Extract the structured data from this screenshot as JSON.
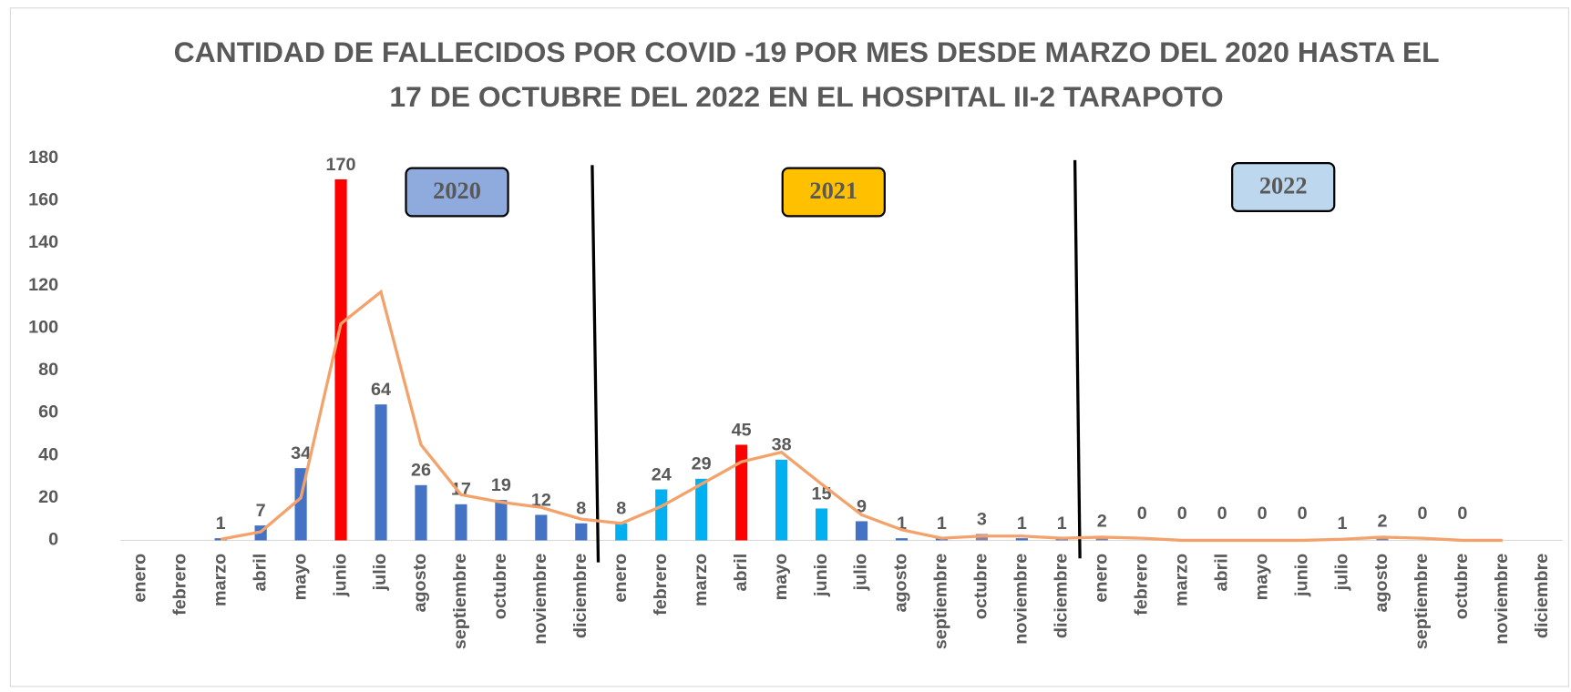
{
  "chart_data": {
    "type": "bar",
    "title": [
      "CANTIDAD DE FALLECIDOS POR COVID -19  POR MES  DESDE MARZO DEL 2020 HASTA EL",
      "17 DE OCTUBRE DEL 2022 EN EL HOSPITAL II-2 TARAPOTO"
    ],
    "categories": [
      "enero",
      "febrero",
      "marzo",
      "abril",
      "mayo",
      "junio",
      "julio",
      "agosto",
      "septiembre",
      "octubre",
      "noviembre",
      "diciembre",
      "enero",
      "febrero",
      "marzo",
      "abril",
      "mayo",
      "junio",
      "julio",
      "agosto",
      "septiembre",
      "octubre",
      "noviembre",
      "diciembre",
      "enero",
      "febrero",
      "marzo",
      "abril",
      "mayo",
      "junio",
      "julio",
      "agosto",
      "septiembre",
      "octubre",
      "noviembre",
      "diciembre"
    ],
    "values": [
      null,
      null,
      1,
      7,
      34,
      170,
      64,
      26,
      17,
      19,
      12,
      8,
      8,
      24,
      29,
      45,
      38,
      15,
      9,
      1,
      1,
      3,
      1,
      1,
      2,
      0,
      0,
      0,
      0,
      0,
      1,
      2,
      0,
      0,
      null,
      null
    ],
    "colors": [
      "#4472c4",
      "#4472c4",
      "#4472c4",
      "#4472c4",
      "#4472c4",
      "#ff0000",
      "#4472c4",
      "#4472c4",
      "#4472c4",
      "#4472c4",
      "#4472c4",
      "#4472c4",
      "#00b0f0",
      "#00b0f0",
      "#00b0f0",
      "#ff0000",
      "#00b0f0",
      "#00b0f0",
      "#4472c4",
      "#4472c4",
      "#4472c4",
      "#8a7fa8",
      "#4472c4",
      "#4472c4",
      "#8a7fa8",
      "#8a7fa8",
      "#8a7fa8",
      "#8a7fa8",
      "#8a7fa8",
      "#8a7fa8",
      "#8a7fa8",
      "#8a7fa8",
      "#8a7fa8",
      "#8a7fa8",
      "#8a7fa8",
      "#8a7fa8"
    ],
    "trend": [
      null,
      null,
      0.5,
      4,
      20,
      102,
      117,
      45,
      21.5,
      18,
      15.5,
      10,
      8,
      16,
      26.5,
      37,
      41.5,
      26.5,
      12,
      5,
      1,
      2,
      2,
      1,
      1.5,
      1,
      0,
      0,
      0,
      0,
      0.5,
      1.5,
      1,
      0,
      0,
      null
    ],
    "trend_color": "#f4a26b",
    "annotations": [
      {
        "text": "2020",
        "color": "#8faadc"
      },
      {
        "text": "2021",
        "color": "#ffc000"
      },
      {
        "text": "2022",
        "color": "#bdd7ee"
      }
    ],
    "ylim": [
      0,
      180
    ],
    "yticks": [
      0,
      20,
      40,
      60,
      80,
      100,
      120,
      140,
      160,
      180
    ],
    "grid": false
  }
}
